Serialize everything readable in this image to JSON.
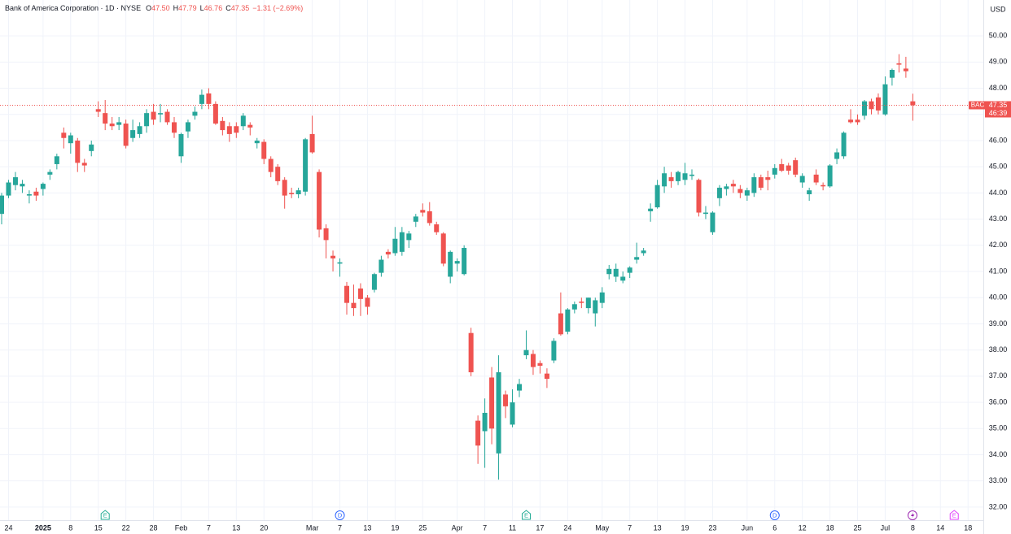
{
  "header": {
    "title": "Bank of America Corporation · 1D · NYSE",
    "ohlc": [
      {
        "key": "O",
        "value": "47.50"
      },
      {
        "key": "H",
        "value": "47.79"
      },
      {
        "key": "L",
        "value": "46.76"
      },
      {
        "key": "C",
        "value": "47.35"
      }
    ],
    "change": "−1.31 (−2.69%)"
  },
  "chart_data": {
    "type": "candlestick",
    "currency": "USD",
    "up_color": "#26a69a",
    "down_color": "#ef5350",
    "grid": true,
    "categories": [
      null,
      "24",
      null,
      null,
      null,
      null,
      "2025",
      null,
      null,
      null,
      "8",
      null,
      null,
      null,
      "15",
      null,
      null,
      null,
      "22",
      null,
      null,
      null,
      "28",
      null,
      null,
      null,
      "Feb",
      null,
      null,
      null,
      "7",
      null,
      null,
      null,
      "13",
      null,
      null,
      null,
      "20",
      null,
      null,
      null,
      null,
      null,
      null,
      "Mar",
      null,
      null,
      null,
      "7",
      null,
      null,
      null,
      "13",
      null,
      null,
      null,
      "19",
      null,
      null,
      null,
      "25",
      null,
      null,
      null,
      null,
      "Apr",
      null,
      null,
      null,
      "7",
      null,
      null,
      null,
      "11",
      null,
      null,
      null,
      "17",
      null,
      null,
      null,
      "24",
      null,
      null,
      null,
      null,
      "May",
      null,
      null,
      null,
      "7",
      null,
      null,
      null,
      "13",
      null,
      null,
      null,
      "19",
      null,
      null,
      null,
      "23",
      null,
      null,
      null,
      null,
      "Jun",
      null,
      null,
      null,
      "6",
      null,
      null,
      null,
      "12",
      null,
      null,
      null,
      "18",
      null,
      null,
      null,
      "25",
      null,
      null,
      null,
      "Jul",
      null,
      null,
      null,
      "8",
      null,
      null,
      null,
      "14",
      null,
      null,
      null,
      "18"
    ],
    "open": [
      43.2,
      43.9,
      44.3,
      44.25,
      43.9,
      44.05,
      44.15,
      44.7,
      45.1,
      46.3,
      45.9,
      46.0,
      45.15,
      45.6,
      47.2,
      47.05,
      46.65,
      46.6,
      46.65,
      46.1,
      46.25,
      46.55,
      47.1,
      47.0,
      47.1,
      46.7,
      45.4,
      46.35,
      46.95,
      47.4,
      47.8,
      47.4,
      46.75,
      46.55,
      46.55,
      46.55,
      46.6,
      45.9,
      45.95,
      45.3,
      45.0,
      44.5,
      44.0,
      43.95,
      44.05,
      46.25,
      44.8,
      42.65,
      41.6,
      41.3,
      40.45,
      39.8,
      40.35,
      40.0,
      40.3,
      40.95,
      41.75,
      41.7,
      41.75,
      42.2,
      42.9,
      43.35,
      43.3,
      42.8,
      42.45,
      40.8,
      41.3,
      40.9,
      38.65,
      35.3,
      34.9,
      36.95,
      34.05,
      36.3,
      35.15,
      36.45,
      37.8,
      37.85,
      37.5,
      37.1,
      37.6,
      39.4,
      38.7,
      39.55,
      39.85,
      39.6,
      39.4,
      39.8,
      40.9,
      40.8,
      40.65,
      40.95,
      41.45,
      41.7,
      43.3,
      43.45,
      44.25,
      44.6,
      44.45,
      44.5,
      44.65,
      44.5,
      43.2,
      42.5,
      43.8,
      44.15,
      44.35,
      44.15,
      43.9,
      44.0,
      44.6,
      44.6,
      44.7,
      45.1,
      45.05,
      45.25,
      44.4,
      43.95,
      44.7,
      44.3,
      44.25,
      45.3,
      45.4,
      46.8,
      46.8,
      46.95,
      47.5,
      47.65,
      47.0,
      48.4,
      48.95,
      48.75,
      47.5,
      null,
      null,
      null,
      null,
      null,
      null,
      null,
      null
    ],
    "high": [
      44.0,
      44.5,
      44.8,
      44.5,
      44.1,
      44.2,
      44.4,
      44.9,
      45.5,
      46.5,
      46.3,
      46.1,
      45.3,
      46.0,
      47.5,
      47.55,
      46.9,
      46.9,
      46.8,
      46.8,
      46.7,
      47.2,
      47.4,
      47.4,
      47.2,
      46.9,
      46.3,
      46.8,
      47.3,
      47.95,
      48.0,
      47.5,
      46.9,
      46.7,
      46.7,
      47.05,
      46.7,
      46.1,
      46.05,
      45.4,
      45.1,
      44.6,
      44.2,
      44.2,
      46.1,
      46.95,
      44.9,
      42.8,
      41.8,
      41.5,
      40.6,
      40.5,
      40.55,
      40.1,
      40.95,
      41.6,
      41.85,
      42.7,
      42.7,
      42.55,
      43.2,
      43.6,
      43.65,
      42.9,
      42.5,
      41.8,
      41.5,
      42.0,
      38.85,
      35.5,
      36.15,
      37.35,
      37.8,
      36.45,
      36.5,
      36.9,
      38.75,
      38.0,
      37.6,
      37.3,
      38.45,
      40.2,
      39.6,
      39.85,
      40.0,
      40.0,
      40.0,
      40.4,
      41.25,
      41.3,
      41.0,
      41.2,
      42.1,
      41.9,
      43.6,
      44.5,
      45.0,
      44.8,
      44.85,
      45.15,
      44.9,
      44.55,
      43.5,
      43.3,
      44.3,
      44.35,
      44.5,
      44.3,
      44.2,
      44.75,
      44.7,
      44.85,
      45.1,
      45.3,
      45.15,
      45.35,
      44.75,
      44.2,
      44.9,
      44.4,
      45.1,
      45.7,
      46.35,
      47.2,
      47.0,
      47.55,
      47.6,
      47.8,
      48.45,
      48.75,
      49.3,
      49.2,
      47.79,
      null,
      null,
      null,
      null,
      null,
      null,
      null,
      null
    ],
    "low": [
      42.8,
      43.8,
      44.1,
      44.0,
      43.6,
      43.7,
      43.9,
      44.5,
      44.9,
      45.7,
      45.5,
      44.8,
      44.8,
      45.4,
      46.9,
      46.4,
      46.4,
      46.4,
      45.7,
      45.95,
      46.1,
      46.3,
      46.6,
      46.7,
      46.6,
      46.1,
      45.15,
      46.1,
      46.8,
      47.2,
      47.2,
      46.6,
      46.2,
      45.95,
      46.1,
      46.4,
      46.2,
      45.7,
      45.1,
      44.6,
      44.3,
      43.4,
      43.8,
      43.8,
      43.9,
      45.5,
      42.3,
      41.5,
      41.0,
      40.8,
      39.35,
      39.3,
      39.3,
      39.35,
      40.2,
      40.8,
      41.5,
      41.6,
      41.6,
      41.9,
      42.7,
      43.1,
      42.75,
      42.4,
      41.2,
      40.55,
      41.0,
      40.85,
      37.0,
      33.65,
      33.5,
      34.4,
      33.05,
      35.4,
      35.05,
      36.2,
      37.65,
      37.05,
      37.1,
      36.55,
      37.5,
      38.55,
      38.6,
      39.4,
      39.6,
      39.4,
      38.9,
      39.6,
      40.7,
      40.6,
      40.55,
      40.75,
      41.3,
      41.6,
      42.9,
      43.4,
      44.0,
      44.2,
      44.3,
      44.3,
      44.5,
      43.1,
      43.0,
      42.4,
      43.5,
      43.9,
      44.0,
      43.8,
      43.7,
      43.85,
      44.1,
      44.1,
      44.55,
      44.8,
      44.7,
      44.6,
      44.2,
      43.7,
      44.3,
      44.1,
      44.2,
      45.1,
      45.3,
      46.65,
      46.6,
      46.8,
      47.0,
      47.0,
      46.95,
      48.1,
      48.6,
      48.4,
      46.76,
      null,
      null,
      null,
      null,
      null,
      null,
      null,
      null
    ],
    "close": [
      43.9,
      44.4,
      44.6,
      44.35,
      43.95,
      43.9,
      44.35,
      44.8,
      45.4,
      46.1,
      46.2,
      45.15,
      45.05,
      45.85,
      47.1,
      46.65,
      46.55,
      46.7,
      45.8,
      46.4,
      46.55,
      47.05,
      46.8,
      47.05,
      46.7,
      46.3,
      46.25,
      46.7,
      47.1,
      47.75,
      47.4,
      46.65,
      46.4,
      46.25,
      46.3,
      46.95,
      46.5,
      46.0,
      45.3,
      44.8,
      44.45,
      43.9,
      43.95,
      44.1,
      46.05,
      45.55,
      42.6,
      42.2,
      41.5,
      41.35,
      39.8,
      39.6,
      39.95,
      39.65,
      40.9,
      41.45,
      41.65,
      42.25,
      42.5,
      42.45,
      43.1,
      43.25,
      42.85,
      42.5,
      41.3,
      41.75,
      41.4,
      41.9,
      37.15,
      34.35,
      35.6,
      35.0,
      37.15,
      35.85,
      36.0,
      36.7,
      38.0,
      37.35,
      37.4,
      36.9,
      38.35,
      38.6,
      39.55,
      39.75,
      39.8,
      40.0,
      39.9,
      40.2,
      41.1,
      41.1,
      40.8,
      41.15,
      41.55,
      41.8,
      43.4,
      44.3,
      44.75,
      44.45,
      44.8,
      44.75,
      44.7,
      43.25,
      43.25,
      43.25,
      44.2,
      44.25,
      44.25,
      44.0,
      44.1,
      44.6,
      44.2,
      44.5,
      44.95,
      44.85,
      44.85,
      44.7,
      44.65,
      44.1,
      44.4,
      44.25,
      45.05,
      45.55,
      46.3,
      46.7,
      46.7,
      47.5,
      47.2,
      47.15,
      48.15,
      48.7,
      48.9,
      48.65,
      47.35,
      null,
      null,
      null,
      null,
      null,
      null,
      null,
      null
    ],
    "ylim": [
      31.5,
      51.37
    ],
    "yticks": [
      {
        "value": 32,
        "label": "32.00"
      },
      {
        "value": 33,
        "label": "33.00"
      },
      {
        "value": 34,
        "label": "34.00"
      },
      {
        "value": 35,
        "label": "35.00"
      },
      {
        "value": 36,
        "label": "36.00"
      },
      {
        "value": 37,
        "label": "37.00"
      },
      {
        "value": 38,
        "label": "38.00"
      },
      {
        "value": 39,
        "label": "39.00"
      },
      {
        "value": 40,
        "label": "40.00"
      },
      {
        "value": 41,
        "label": "41.00"
      },
      {
        "value": 42,
        "label": "42.00"
      },
      {
        "value": 43,
        "label": "43.00"
      },
      {
        "value": 44,
        "label": "44.00"
      },
      {
        "value": 45,
        "label": "45.00"
      },
      {
        "value": 46,
        "label": "46.00"
      },
      {
        "value": 47,
        "label": "47.00"
      },
      {
        "value": 48,
        "label": "48.00"
      },
      {
        "value": 49,
        "label": "49.00"
      },
      {
        "value": 50,
        "label": "50.00"
      }
    ],
    "last_price": {
      "symbol": "BAC",
      "value": 47.35,
      "label": "47.35",
      "countdown": "46:39"
    },
    "events": [
      {
        "index": 15,
        "label": "E",
        "color": "#22ab94"
      },
      {
        "index": 49,
        "label": "D",
        "color": "#2962ff"
      },
      {
        "index": 76,
        "label": "E",
        "color": "#22ab94"
      },
      {
        "index": 112,
        "label": "D",
        "color": "#2962ff"
      },
      {
        "index": 138,
        "label": "E",
        "color": "#e040fb"
      }
    ]
  }
}
